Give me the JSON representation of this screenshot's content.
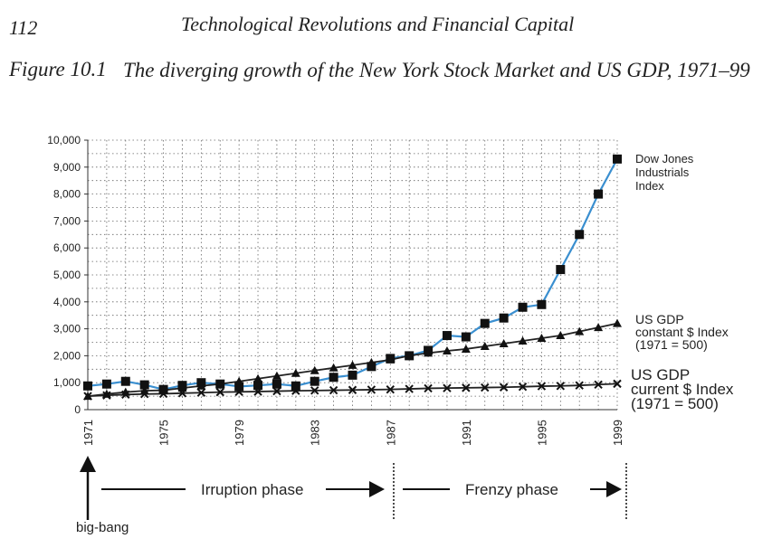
{
  "page": {
    "number": "112",
    "running_head": "Technological Revolutions and Financial Capital"
  },
  "figure": {
    "label": "Figure 10.1",
    "title": "The diverging growth of the New York Stock Market and US GDP, 1971–99"
  },
  "chart_data": {
    "type": "line",
    "x": [
      1971,
      1972,
      1973,
      1974,
      1975,
      1976,
      1977,
      1978,
      1979,
      1980,
      1981,
      1982,
      1983,
      1984,
      1985,
      1986,
      1987,
      1988,
      1989,
      1990,
      1991,
      1992,
      1993,
      1994,
      1995,
      1996,
      1997,
      1998,
      1999
    ],
    "x_tick_labels": [
      "1971",
      "1975",
      "1979",
      "1983",
      "1987",
      "1991",
      "1995",
      "1999"
    ],
    "y_tick_labels": [
      "0",
      "1,000",
      "2,000",
      "3,000",
      "4,000",
      "5,000",
      "6,000",
      "7,000",
      "8,000",
      "9,000",
      "10,000"
    ],
    "ylim": [
      0,
      10000
    ],
    "grid": true,
    "series": [
      {
        "name": "Dow Jones Industrials Index",
        "label_lines": [
          "Dow Jones",
          "Industrials",
          "Index"
        ],
        "marker": "square",
        "line_color": "#3a8fd0",
        "values": [
          880,
          950,
          1050,
          920,
          750,
          900,
          1000,
          950,
          860,
          900,
          950,
          880,
          1050,
          1200,
          1280,
          1600,
          1900,
          2000,
          2200,
          2750,
          2700,
          3200,
          3400,
          3800,
          3900,
          5200,
          6500,
          8000,
          9300
        ]
      },
      {
        "name": "US GDP constant $ Index (1971 = 500)",
        "label_lines": [
          "US GDP",
          "constant $ Index",
          "(1971 = 500)"
        ],
        "marker": "triangle",
        "line_color": "#222222",
        "values": [
          500,
          580,
          650,
          700,
          720,
          800,
          880,
          950,
          1050,
          1150,
          1250,
          1350,
          1450,
          1550,
          1650,
          1750,
          1850,
          2000,
          2100,
          2180,
          2250,
          2350,
          2450,
          2550,
          2650,
          2750,
          2900,
          3050,
          3200
        ]
      },
      {
        "name": "US GDP current $ Index (1971 = 500)",
        "label_lines": [
          "US GDP",
          "current $ Index",
          "(1971 = 500)"
        ],
        "marker": "cross",
        "line_color": "#222222",
        "values": [
          500,
          530,
          560,
          580,
          590,
          610,
          630,
          650,
          660,
          670,
          685,
          700,
          710,
          720,
          730,
          740,
          750,
          770,
          790,
          800,
          810,
          820,
          830,
          850,
          870,
          880,
          900,
          930,
          960
        ]
      }
    ]
  },
  "annotations": {
    "big_bang": "big-bang",
    "irruption": "Irruption phase",
    "frenzy": "Frenzy phase"
  },
  "colors": {
    "dow_line": "#3a8fd0",
    "text": "#222222"
  }
}
